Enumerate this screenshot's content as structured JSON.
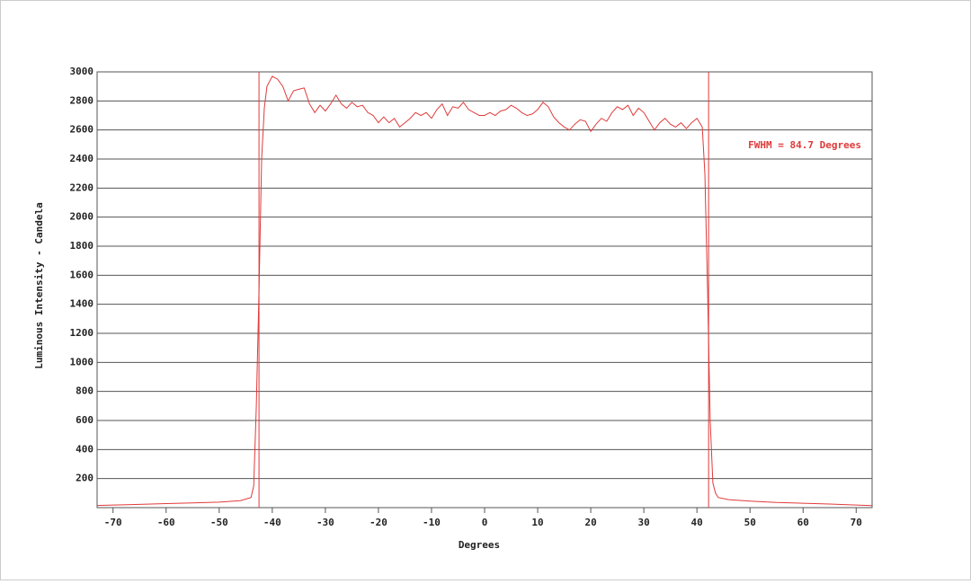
{
  "chart_data": {
    "type": "line",
    "x_label": "Degrees",
    "y_label": "Luminous Intensity - Candela",
    "annotation": "FWHM = 84.7 Degrees",
    "fwhm_lines": [
      -42.5,
      42.2
    ],
    "xlim": [
      -73,
      73
    ],
    "ylim": [
      0,
      3000
    ],
    "xticks": [
      -70,
      -60,
      -50,
      -40,
      -30,
      -20,
      -10,
      0,
      10,
      20,
      30,
      40,
      50,
      60,
      70
    ],
    "yticks": [
      200,
      400,
      600,
      800,
      1000,
      1200,
      1400,
      1600,
      1800,
      2000,
      2200,
      2400,
      2600,
      2800,
      3000
    ],
    "grid": true,
    "x": [
      -73,
      -70,
      -65,
      -60,
      -55,
      -50,
      -46,
      -44,
      -43.5,
      -43,
      -42.5,
      -42,
      -41.5,
      -41,
      -40,
      -39,
      -38,
      -37,
      -36,
      -35,
      -34,
      -33,
      -32,
      -31,
      -30,
      -29,
      -28,
      -27,
      -26,
      -25,
      -24,
      -23,
      -22,
      -21,
      -20,
      -19,
      -18,
      -17,
      -16,
      -15,
      -14,
      -13,
      -12,
      -11,
      -10,
      -9,
      -8,
      -7,
      -6,
      -5,
      -4,
      -3,
      -2,
      -1,
      0,
      1,
      2,
      3,
      4,
      5,
      6,
      7,
      8,
      9,
      10,
      11,
      12,
      13,
      14,
      15,
      16,
      17,
      18,
      19,
      20,
      21,
      22,
      23,
      24,
      25,
      26,
      27,
      28,
      29,
      30,
      31,
      32,
      33,
      34,
      35,
      36,
      37,
      38,
      39,
      40,
      41,
      41.5,
      42,
      42.5,
      43,
      43.5,
      44,
      46,
      50,
      55,
      60,
      65,
      70,
      73
    ],
    "series": [
      {
        "color": "#e03a3a",
        "values": [
          15,
          18,
          22,
          28,
          32,
          38,
          48,
          70,
          150,
          700,
          1500,
          2400,
          2750,
          2900,
          2970,
          2950,
          2900,
          2800,
          2870,
          2880,
          2890,
          2780,
          2720,
          2770,
          2730,
          2780,
          2840,
          2780,
          2750,
          2790,
          2760,
          2770,
          2720,
          2700,
          2650,
          2690,
          2650,
          2680,
          2620,
          2650,
          2680,
          2720,
          2700,
          2720,
          2680,
          2740,
          2780,
          2700,
          2760,
          2750,
          2790,
          2740,
          2720,
          2700,
          2700,
          2720,
          2700,
          2730,
          2740,
          2770,
          2750,
          2720,
          2700,
          2710,
          2740,
          2790,
          2760,
          2690,
          2650,
          2620,
          2600,
          2640,
          2670,
          2660,
          2590,
          2640,
          2680,
          2660,
          2720,
          2760,
          2740,
          2770,
          2700,
          2750,
          2720,
          2660,
          2600,
          2650,
          2680,
          2640,
          2620,
          2650,
          2610,
          2650,
          2680,
          2620,
          2300,
          1500,
          600,
          170,
          100,
          70,
          55,
          45,
          35,
          30,
          25,
          18,
          14
        ]
      }
    ]
  }
}
